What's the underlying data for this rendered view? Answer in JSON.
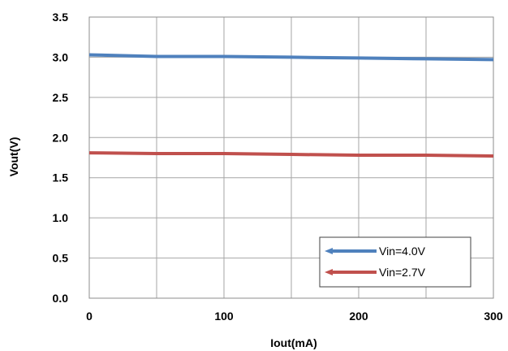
{
  "chart_data": {
    "type": "line",
    "title": "",
    "xlabel": "Iout(mA)",
    "ylabel": "Vout(V)",
    "xlim": [
      0,
      300
    ],
    "ylim": [
      0,
      3.5
    ],
    "x_ticks": [
      "0",
      "100",
      "200",
      "300"
    ],
    "y_ticks": [
      "0.0",
      "0.5",
      "1.0",
      "1.5",
      "2.0",
      "2.5",
      "3.0",
      "3.5"
    ],
    "grid": true,
    "legend_position": "bottom-right",
    "series": [
      {
        "name": "Vin=4.0V",
        "color": "#4f81bd",
        "x": [
          0,
          50,
          100,
          150,
          200,
          250,
          300
        ],
        "y": [
          3.03,
          3.01,
          3.01,
          3.0,
          2.99,
          2.98,
          2.97
        ]
      },
      {
        "name": "Vin=2.7V",
        "color": "#c0504d",
        "x": [
          0,
          50,
          100,
          150,
          200,
          250,
          300
        ],
        "y": [
          1.81,
          1.8,
          1.8,
          1.79,
          1.78,
          1.78,
          1.77
        ]
      }
    ]
  }
}
